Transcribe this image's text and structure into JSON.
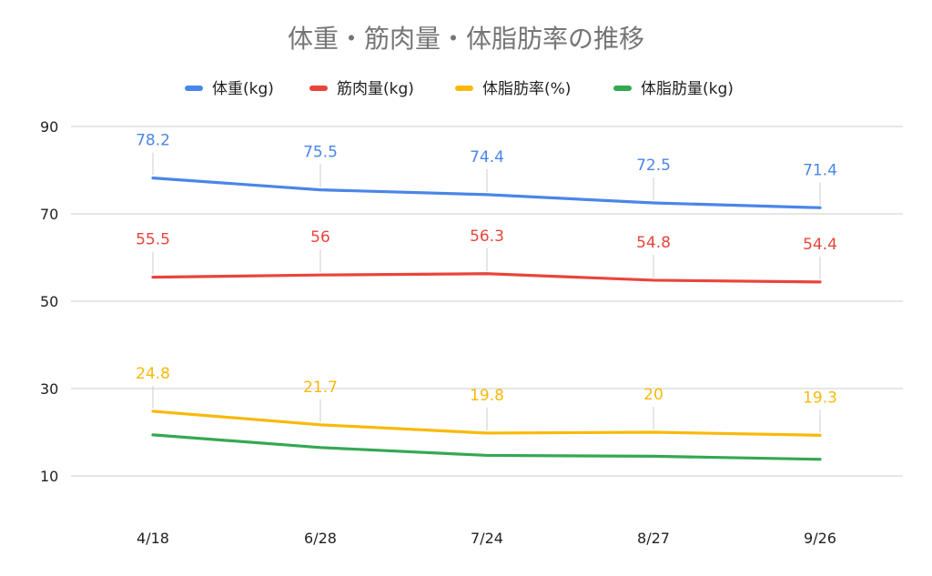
{
  "chart_data": {
    "type": "line",
    "title": "体重・筋肉量・体脂肪率の推移",
    "xlabel": "",
    "ylabel": "",
    "categories": [
      "4/18",
      "6/28",
      "7/24",
      "8/27",
      "9/26"
    ],
    "ylim": [
      0,
      90
    ],
    "yticks": [
      10,
      30,
      50,
      70,
      90
    ],
    "grid": true,
    "legend_position": "top",
    "series": [
      {
        "name": "体重(kg)",
        "color": "#4a86e8",
        "values": [
          78.2,
          75.5,
          74.4,
          72.5,
          71.4
        ],
        "labels": true
      },
      {
        "name": "筋肉量(kg)",
        "color": "#e8453c",
        "values": [
          55.5,
          56,
          56.3,
          54.8,
          54.4
        ],
        "labels": true
      },
      {
        "name": "体脂肪率(%)",
        "color": "#f9b90b",
        "values": [
          24.8,
          21.7,
          19.8,
          20,
          19.3
        ],
        "labels": true
      },
      {
        "name": "体脂肪量(kg)",
        "color": "#35a853",
        "values": [
          19.4,
          16.5,
          14.7,
          14.5,
          13.8
        ],
        "labels": false
      }
    ]
  }
}
